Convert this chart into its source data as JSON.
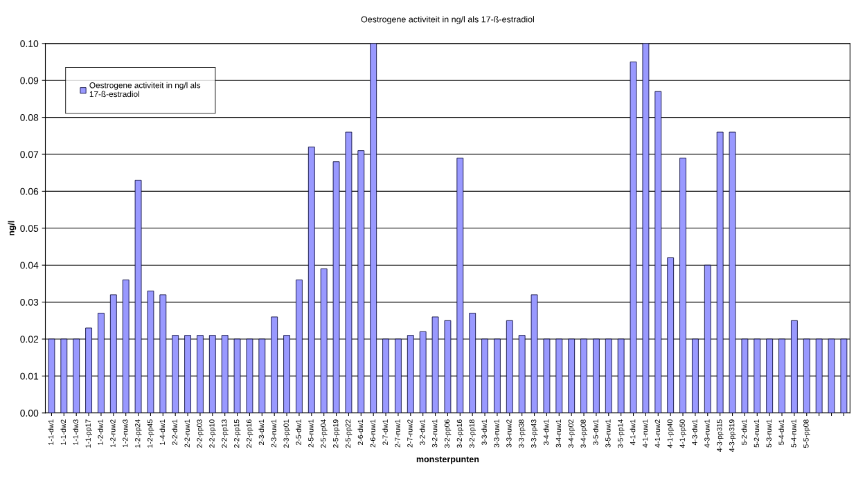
{
  "chart_data": {
    "type": "bar",
    "title": "Oestrogene activiteit in ng/l als 17-ß-estradiol",
    "xlabel": "monsterpunten",
    "ylabel": "ng/l",
    "categories": [
      "1-1-dw1",
      "1-1-dw2",
      "1-1-dw3",
      "1-1-pp17",
      "1-2-dw1",
      "1-2-ruw2",
      "1-2-ruw3",
      "1-2-pp24",
      "1-2-pp45",
      "1-4-dw1",
      "2-2-dw1",
      "2-2-ruw1",
      "2-2-pp03",
      "2-2-pp10",
      "2-2-pp13",
      "2-2-pp15",
      "2-2-pp16",
      "2-3-dw1",
      "2-3-ruw1",
      "2-3-pp01",
      "2-5-dw1",
      "2-5-ruw1",
      "2-5-pp04",
      "2-5-pp19",
      "2-5-pp22",
      "2-6-dw1",
      "2-6-ruw1",
      "2-7-dw1",
      "2-7-ruw1",
      "2-7-ruw2",
      "3-2-dw1",
      "3-2-ruw1",
      "3-2-pp06",
      "3-2-pp16",
      "3-2-pp18",
      "3-3-dw1",
      "3-3-ruw1",
      "3-3-ruw2",
      "3-3-pp38",
      "3-3-pp43",
      "3-4-dw1",
      "3-4-ruw1",
      "3-4-pp02",
      "3-4-pp08",
      "3-5-dw1",
      "3-5-ruw1",
      "3-5-pp14",
      "4-1-dw1",
      "4-1-ruw1",
      "4-1-ruw2",
      "4-1-pp40",
      "4-1-pp50",
      "4-3-dw1",
      "4-3-ruw1",
      "4-3-pp315",
      "4-3-pp319",
      "5-2-dw1",
      "5-2-ruw1",
      "5-3-ruw1",
      "5-4-dw1",
      "5-4-ruw1",
      "5-5-pp08",
      null,
      null,
      null
    ],
    "series": [
      {
        "name": "Oestrogene activiteit in ng/l als\n17-ß-estradiol",
        "color": "#9999ff",
        "values": [
          0.02,
          0.02,
          0.02,
          0.023,
          0.027,
          0.032,
          0.036,
          0.063,
          0.033,
          0.032,
          0.021,
          0.021,
          0.021,
          0.021,
          0.021,
          0.02,
          0.02,
          0.02,
          0.026,
          0.021,
          0.036,
          0.072,
          0.039,
          0.068,
          0.076,
          0.071,
          0.1,
          0.02,
          0.02,
          0.021,
          0.022,
          0.026,
          0.025,
          0.069,
          0.027,
          0.02,
          0.02,
          0.025,
          0.021,
          0.032,
          0.02,
          0.02,
          0.02,
          0.02,
          0.02,
          0.02,
          0.02,
          0.095,
          0.1,
          0.087,
          0.042,
          0.069,
          0.02,
          0.04,
          0.076,
          0.076,
          0.02,
          0.02,
          0.02,
          0.02,
          0.025,
          0.02,
          0.02,
          0.02,
          0.02
        ]
      }
    ],
    "ylim": [
      0,
      0.1
    ],
    "yticks": [
      {
        "value": 0,
        "label": "0.00"
      },
      {
        "value": 0.01,
        "label": "0.01"
      },
      {
        "value": 0.02,
        "label": "0.02"
      },
      {
        "value": 0.03,
        "label": "0.03"
      },
      {
        "value": 0.04,
        "label": "0.04"
      },
      {
        "value": 0.05,
        "label": "0.05"
      },
      {
        "value": 0.06,
        "label": "0.06"
      },
      {
        "value": 0.07,
        "label": "0.07"
      },
      {
        "value": 0.08,
        "label": "0.08"
      },
      {
        "value": 0.09,
        "label": "0.09"
      },
      {
        "value": 0.1,
        "label": "0.10"
      }
    ],
    "grid": "y",
    "legend": "top left"
  }
}
